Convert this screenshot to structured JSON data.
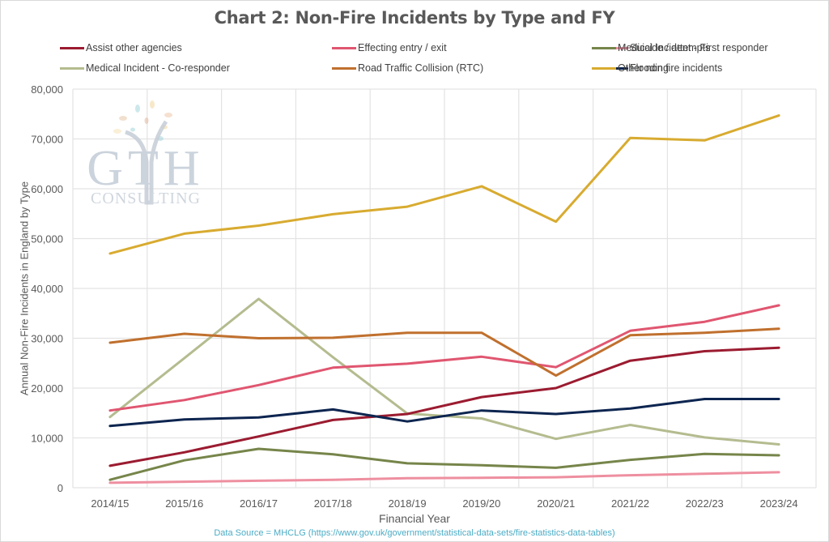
{
  "chart_data": {
    "type": "line",
    "title": "Chart 2: Non-Fire Incidents by Type and FY",
    "xlabel": "Financial Year",
    "ylabel": "Annual Non-Fire Incidents in England by Type",
    "ylim": [
      0,
      80000
    ],
    "yticks": [
      0,
      10000,
      20000,
      30000,
      40000,
      50000,
      60000,
      70000,
      80000
    ],
    "ytick_labels": [
      "0",
      "10,000",
      "20,000",
      "30,000",
      "40,000",
      "50,000",
      "60,000",
      "70,000",
      "80,000"
    ],
    "grid": true,
    "legend_position": "top",
    "categories": [
      "2014/15",
      "2015/16",
      "2016/17",
      "2017/18",
      "2018/19",
      "2019/20",
      "2020/21",
      "2021/22",
      "2022/23",
      "2023/24"
    ],
    "series": [
      {
        "name": "Assist other agencies",
        "color": "#9b1b30",
        "values": [
          4400,
          7100,
          10300,
          13600,
          14800,
          18200,
          20000,
          25500,
          27400,
          28100
        ]
      },
      {
        "name": "Effecting entry / exit",
        "color": "#e05670",
        "values": [
          15500,
          17600,
          20600,
          24100,
          24900,
          26300,
          24200,
          31500,
          33300,
          36600
        ]
      },
      {
        "name": "Suicide / attempts",
        "color": "#ee8fa0",
        "values": [
          1000,
          1200,
          1400,
          1600,
          1900,
          2000,
          2100,
          2500,
          2800,
          3100
        ]
      },
      {
        "name": "Medical Incident - First responder",
        "color": "#76854a",
        "values": [
          1600,
          5500,
          7800,
          6700,
          4900,
          4500,
          4000,
          5600,
          6800,
          6500
        ]
      },
      {
        "name": "Medical Incident - Co-responder",
        "color": "#b4bc8f",
        "values": [
          14200,
          26000,
          37900,
          26200,
          14900,
          13900,
          9800,
          12600,
          10100,
          8700
        ]
      },
      {
        "name": "Road Traffic Collision (RTC)",
        "color": "#c0702e",
        "values": [
          29100,
          30900,
          30000,
          30100,
          31100,
          31100,
          22500,
          30600,
          31100,
          31900
        ]
      },
      {
        "name": "Flooding",
        "color": "#0d2550",
        "values": [
          12400,
          13700,
          14100,
          15700,
          13300,
          15500,
          14800,
          15900,
          17800,
          17800
        ]
      },
      {
        "name": "Other non fire incidents",
        "color": "#d8ab30",
        "values": [
          47000,
          51000,
          52600,
          54900,
          56400,
          60500,
          53400,
          70200,
          69700,
          74700
        ]
      }
    ]
  },
  "watermark": {
    "mark": "GTH",
    "subtitle": "CONSULTING"
  },
  "source": "Data Source = MHCLG (https://www.gov.uk/government/statistical-data-sets/fire-statistics-data-tables)"
}
